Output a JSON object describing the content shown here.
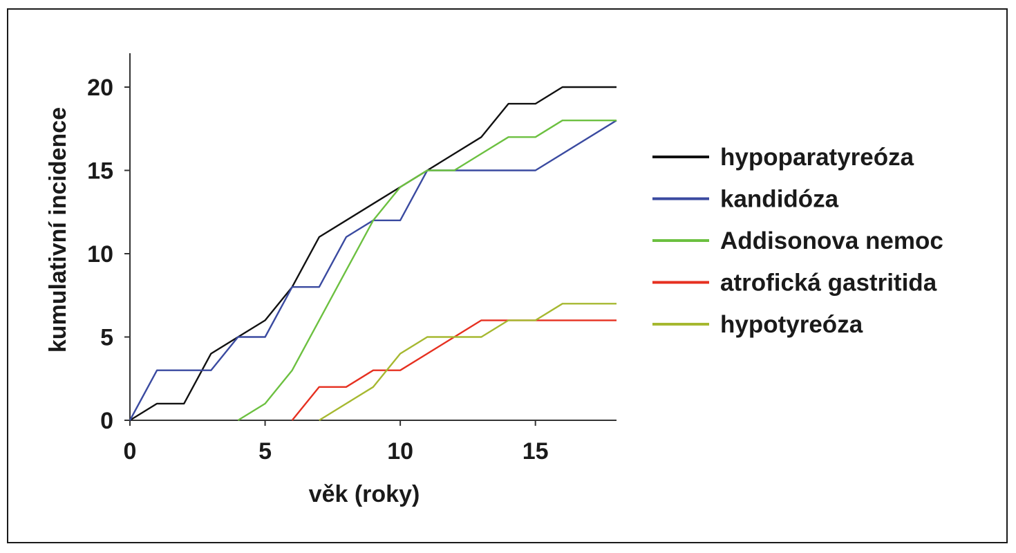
{
  "chart_data": {
    "type": "line",
    "xlabel": "věk (roky)",
    "ylabel": "kumulativní incidence",
    "xlim": [
      0,
      18
    ],
    "ylim": [
      0,
      20
    ],
    "xticks": [
      0,
      5,
      10,
      15
    ],
    "yticks": [
      0,
      5,
      10,
      15,
      20
    ],
    "grid": false,
    "legend_position": "right",
    "series": [
      {
        "name": "hypoparatyreóza",
        "color": "#111111",
        "points": [
          [
            0,
            0
          ],
          [
            1,
            1
          ],
          [
            2,
            1
          ],
          [
            3,
            4
          ],
          [
            4,
            5
          ],
          [
            5,
            6
          ],
          [
            6,
            8
          ],
          [
            7,
            11
          ],
          [
            8,
            12
          ],
          [
            9,
            13
          ],
          [
            10,
            14
          ],
          [
            11,
            15
          ],
          [
            12,
            16
          ],
          [
            13,
            17
          ],
          [
            14,
            19
          ],
          [
            15,
            19
          ],
          [
            16,
            20
          ],
          [
            18,
            20
          ]
        ]
      },
      {
        "name": "kandidóza",
        "color": "#3a4aa0",
        "points": [
          [
            0,
            0
          ],
          [
            1,
            3
          ],
          [
            3,
            3
          ],
          [
            4,
            5
          ],
          [
            5,
            5
          ],
          [
            6,
            8
          ],
          [
            7,
            8
          ],
          [
            8,
            11
          ],
          [
            9,
            12
          ],
          [
            10,
            12
          ],
          [
            11,
            15
          ],
          [
            15,
            15
          ],
          [
            18,
            18
          ]
        ]
      },
      {
        "name": "Addisonova nemoc",
        "color": "#6cc040",
        "points": [
          [
            4,
            0
          ],
          [
            5,
            1
          ],
          [
            6,
            3
          ],
          [
            7,
            6
          ],
          [
            8,
            9
          ],
          [
            9,
            12
          ],
          [
            10,
            14
          ],
          [
            11,
            15
          ],
          [
            12,
            15
          ],
          [
            13,
            16
          ],
          [
            14,
            17
          ],
          [
            15,
            17
          ],
          [
            16,
            18
          ],
          [
            18,
            18
          ]
        ]
      },
      {
        "name": "atrofická gastritida",
        "color": "#e63020",
        "points": [
          [
            6,
            0
          ],
          [
            7,
            2
          ],
          [
            8,
            2
          ],
          [
            9,
            3
          ],
          [
            10,
            3
          ],
          [
            11,
            4
          ],
          [
            12,
            5
          ],
          [
            13,
            6
          ],
          [
            18,
            6
          ]
        ]
      },
      {
        "name": "hypotyreóza",
        "color": "#a6b830",
        "points": [
          [
            7,
            0
          ],
          [
            8,
            1
          ],
          [
            9,
            2
          ],
          [
            10,
            4
          ],
          [
            11,
            5
          ],
          [
            13,
            5
          ],
          [
            14,
            6
          ],
          [
            15,
            6
          ],
          [
            16,
            7
          ],
          [
            18,
            7
          ]
        ]
      }
    ]
  }
}
